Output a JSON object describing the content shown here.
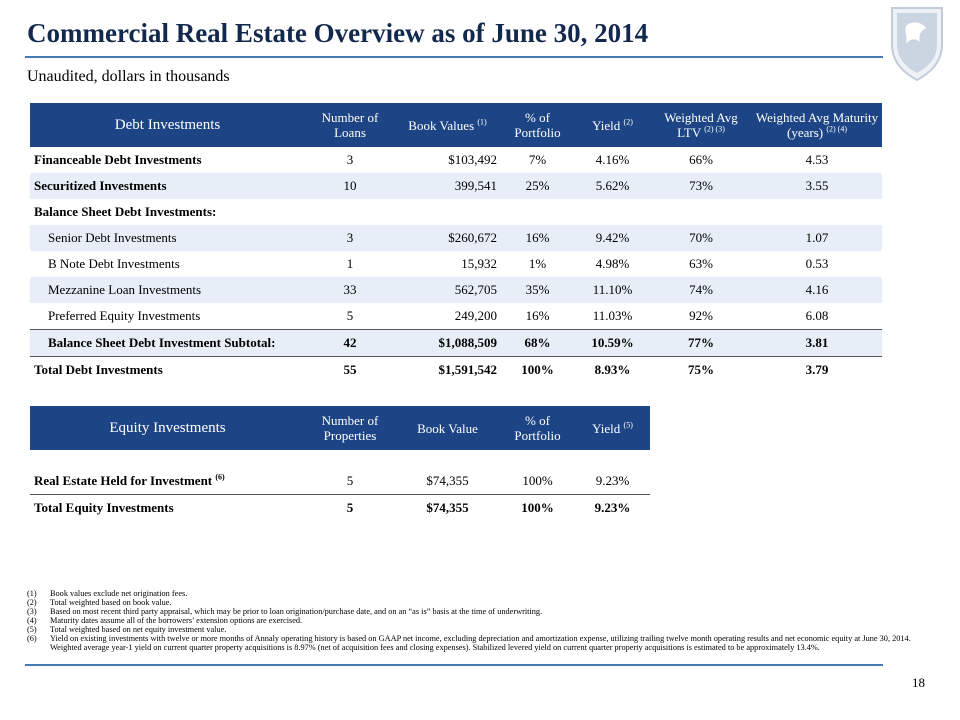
{
  "header": {
    "title": "Commercial Real Estate Overview as of June 30, 2014",
    "subtitle": "Unaudited, dollars in thousands"
  },
  "debt_table": {
    "columns": [
      "Debt Investments",
      "Number of Loans",
      {
        "text": "Book Values",
        "note": "(1)"
      },
      "% of Portfolio",
      {
        "text": "Yield",
        "note": "(2)"
      },
      {
        "text": "Weighted Avg LTV",
        "note": "(2) (3)"
      },
      {
        "text": "Weighted Avg Maturity (years)",
        "note": "(2) (4)"
      }
    ],
    "rows": [
      [
        "Financeable Debt Investments",
        "3",
        "$103,492",
        "7%",
        "4.16%",
        "66%",
        "4.53"
      ],
      [
        "Securitized Investments",
        "10",
        "399,541",
        "25%",
        "5.62%",
        "73%",
        "3.55"
      ],
      [
        "Balance Sheet Debt Investments:"
      ],
      [
        "Senior Debt Investments",
        "3",
        "$260,672",
        "16%",
        "9.42%",
        "70%",
        "1.07"
      ],
      [
        "B Note Debt Investments",
        "1",
        "15,932",
        "1%",
        "4.98%",
        "63%",
        "0.53"
      ],
      [
        "Mezzanine Loan Investments",
        "33",
        "562,705",
        "35%",
        "11.10%",
        "74%",
        "4.16"
      ],
      [
        "Preferred Equity Investments",
        "5",
        "249,200",
        "16%",
        "11.03%",
        "92%",
        "6.08"
      ],
      [
        "Balance Sheet Debt Investment Subtotal:",
        "42",
        "$1,088,509",
        "68%",
        "10.59%",
        "77%",
        "3.81"
      ],
      [
        "Total Debt Investments",
        "55",
        "$1,591,542",
        "100%",
        "8.93%",
        "75%",
        "3.79"
      ]
    ]
  },
  "equity_table": {
    "columns": [
      "Equity Investments",
      "Number of Properties",
      "Book Value",
      "% of Portfolio",
      {
        "text": "Yield",
        "note": "(5)"
      }
    ],
    "rows": [
      [
        {
          "text": "Real Estate Held for Investment",
          "note": "(6)"
        },
        "5",
        "$74,355",
        "100%",
        "9.23%"
      ],
      [
        "Total Equity Investments",
        "5",
        "$74,355",
        "100%",
        "9.23%"
      ]
    ]
  },
  "footnotes": [
    {
      "num": "(1)",
      "text": "Book values exclude net origination fees."
    },
    {
      "num": "(2)",
      "text": "Total weighted based on book value."
    },
    {
      "num": "(3)",
      "text": "Based on most recent third party appraisal, which may be prior to loan origination/purchase date, and on an “as is” basis at the time of underwriting."
    },
    {
      "num": "(4)",
      "text": "Maturity dates assume all of the borrowers’ extension options are exercised."
    },
    {
      "num": "(5)",
      "text": "Total weighted based on net equity investment value."
    },
    {
      "num": "(6)",
      "text": "Yield on existing investments with twelve or more months of Annaly operating history is based on GAAP net income, excluding depreciation and amortization expense, utilizing trailing twelve month operating results and net economic equity at June 30, 2014. Weighted average year-1 yield on current quarter property acquisitions is 8.97% (net of acquisition fees and closing expenses). Stabilized levered yield on current quarter property acquisitions is estimated to be approximately 13.4%."
    }
  ],
  "page_number": "18"
}
